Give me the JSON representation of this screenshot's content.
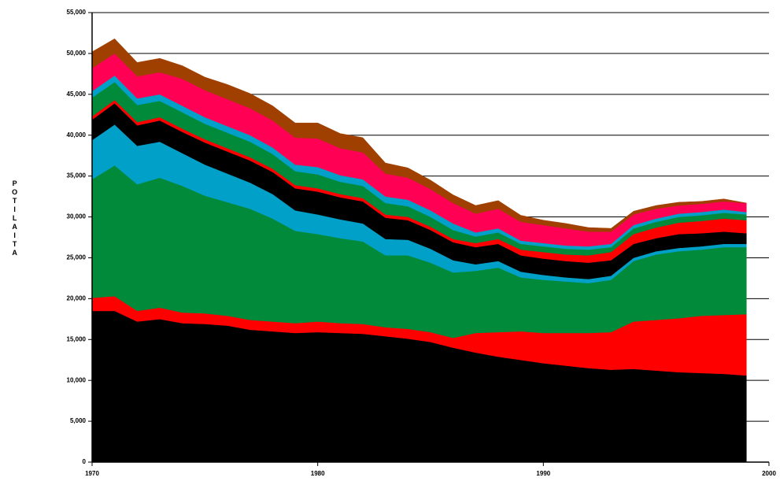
{
  "chart_data": {
    "type": "stacked_area",
    "y_label": "POTILAITA",
    "x": [
      1970,
      1971,
      1972,
      1973,
      1974,
      1975,
      1976,
      1977,
      1978,
      1979,
      1980,
      1981,
      1982,
      1983,
      1984,
      1985,
      1986,
      1987,
      1988,
      1989,
      1990,
      1991,
      1992,
      1993,
      1994,
      1995,
      1996,
      1997,
      1998,
      1999
    ],
    "xlim": [
      1970,
      2000
    ],
    "xticks": [
      1970,
      1980,
      1990,
      2000
    ],
    "ylim": [
      0,
      55000
    ],
    "yticks": [
      0,
      {
        "value": 5000,
        "label": "5,000"
      },
      {
        "value": 10000,
        "label": "10,000"
      },
      {
        "value": 15000,
        "label": "15,000"
      },
      {
        "value": 20000,
        "label": "20,000"
      },
      {
        "value": 25000,
        "label": "25,000"
      },
      {
        "value": 30000,
        "label": "30,000"
      },
      {
        "value": 35000,
        "label": "35,000"
      },
      {
        "value": 40000,
        "label": "40,000"
      },
      {
        "value": 45000,
        "label": "45,000"
      },
      {
        "value": 50000,
        "label": "50,000"
      },
      {
        "value": 55000,
        "label": "55,000"
      }
    ],
    "grid": true,
    "series": [
      {
        "color": "#000000",
        "values": [
          18500,
          18500,
          17200,
          17500,
          17000,
          16900,
          16700,
          16200,
          16000,
          15800,
          15900,
          15800,
          15700,
          15400,
          15100,
          14700,
          14000,
          13400,
          12900,
          12500,
          12100,
          11800,
          11500,
          11300,
          11400,
          11200,
          11000,
          10900,
          10800,
          10600
        ]
      },
      {
        "color": "#ff0000",
        "values": [
          1600,
          1800,
          1300,
          1400,
          1300,
          1300,
          1200,
          1200,
          1200,
          1200,
          1300,
          1200,
          1200,
          1100,
          1200,
          1200,
          1200,
          2400,
          3000,
          3500,
          3700,
          4000,
          4300,
          4600,
          5800,
          6200,
          6600,
          7000,
          7200,
          7500
        ]
      },
      {
        "color": "#008a3a",
        "values": [
          14500,
          16000,
          15500,
          15900,
          15500,
          14400,
          13900,
          13600,
          12600,
          11300,
          10700,
          10400,
          10100,
          8800,
          9000,
          8500,
          8000,
          7600,
          7900,
          6600,
          6500,
          6300,
          6100,
          6400,
          7400,
          8000,
          8200,
          8100,
          8300,
          8200
        ]
      },
      {
        "color": "#00a0c8",
        "values": [
          4800,
          5000,
          4700,
          4400,
          4000,
          3800,
          3500,
          3200,
          3000,
          2500,
          2400,
          2300,
          2200,
          2000,
          1900,
          1700,
          1500,
          800,
          800,
          700,
          600,
          500,
          500,
          500,
          400,
          400,
          400,
          400,
          400,
          400
        ]
      },
      {
        "color": "#000000",
        "values": [
          2500,
          2600,
          2500,
          2600,
          2600,
          2700,
          2700,
          2700,
          2700,
          2700,
          2800,
          2700,
          2700,
          2600,
          2400,
          2300,
          2200,
          2100,
          2100,
          2000,
          2000,
          2000,
          2000,
          1900,
          1700,
          1600,
          1700,
          1600,
          1500,
          1300
        ]
      },
      {
        "color": "#ff0000",
        "values": [
          400,
          400,
          400,
          400,
          400,
          400,
          400,
          400,
          400,
          400,
          400,
          400,
          400,
          400,
          400,
          400,
          400,
          500,
          600,
          700,
          800,
          800,
          900,
          1000,
          1200,
          1300,
          1400,
          1500,
          1600,
          1600
        ]
      },
      {
        "color": "#008a3a",
        "values": [
          2300,
          2200,
          2100,
          2000,
          2000,
          1900,
          1900,
          1900,
          1800,
          1700,
          1700,
          1500,
          1500,
          1400,
          1300,
          1200,
          1100,
          800,
          800,
          700,
          700,
          700,
          700,
          600,
          700,
          700,
          700,
          700,
          700,
          700
        ]
      },
      {
        "color": "#00a0c8",
        "values": [
          800,
          800,
          800,
          800,
          800,
          800,
          800,
          800,
          800,
          800,
          900,
          800,
          800,
          800,
          800,
          800,
          800,
          500,
          500,
          400,
          400,
          400,
          400,
          400,
          400,
          400,
          400,
          400,
          400,
          300
        ]
      },
      {
        "color": "#ff0055",
        "values": [
          2800,
          2700,
          2700,
          2700,
          3300,
          3300,
          3300,
          3300,
          3300,
          3300,
          3500,
          3300,
          3300,
          2800,
          2700,
          2600,
          2500,
          2300,
          2400,
          2300,
          2200,
          2100,
          1800,
          1500,
          1300,
          1200,
          1000,
          1000,
          1000,
          1100
        ]
      },
      {
        "color": "#a04000",
        "values": [
          2000,
          1800,
          1700,
          1700,
          1600,
          1600,
          1800,
          1800,
          1800,
          1800,
          1900,
          1800,
          1800,
          1300,
          1200,
          1100,
          1000,
          1000,
          1000,
          800,
          600,
          600,
          500,
          400,
          400,
          400,
          400,
          300,
          300,
          0
        ]
      }
    ]
  }
}
